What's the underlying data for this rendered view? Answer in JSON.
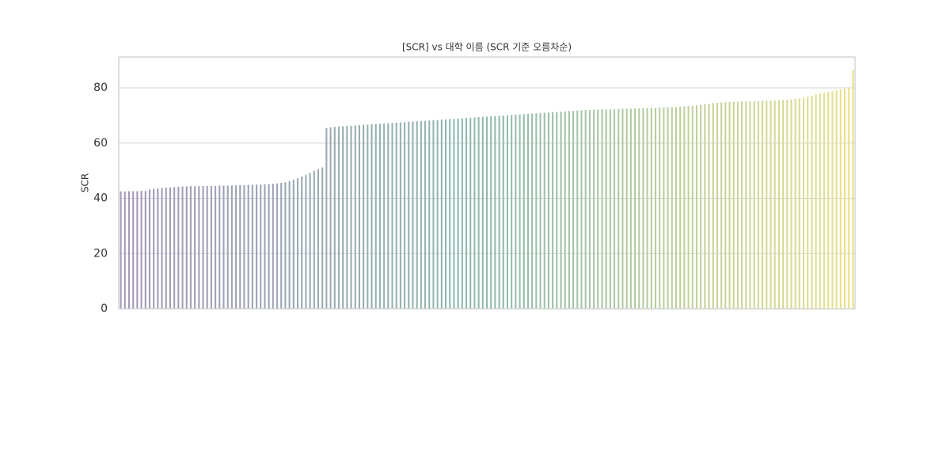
{
  "chart_data": {
    "type": "bar",
    "title": "[SCR] vs 대학 이름 (SCR 기준 오름차순)",
    "y_label": "SCR",
    "categories": [
      null,
      null,
      null,
      null,
      null,
      null,
      null,
      null,
      null,
      null,
      null,
      null,
      null,
      null,
      null,
      null,
      null,
      null,
      null,
      null,
      null,
      null,
      null,
      null,
      null,
      null,
      null,
      null,
      null,
      null,
      null,
      null,
      null,
      null,
      null,
      null,
      null,
      null,
      null,
      null,
      null,
      null,
      null,
      null,
      null,
      null,
      null,
      null,
      null,
      null,
      null,
      null,
      null,
      null,
      null,
      null,
      null,
      null,
      null,
      null,
      null,
      null,
      null,
      null,
      null,
      null,
      null,
      null,
      null,
      null,
      null,
      null,
      null,
      null,
      null,
      null,
      null,
      null,
      null,
      null,
      null,
      null,
      null,
      null,
      null,
      null,
      null,
      null,
      null,
      null,
      null,
      null,
      null,
      null,
      null,
      null,
      null,
      null,
      null,
      null,
      null,
      null,
      null,
      null,
      null,
      null,
      null,
      null,
      null,
      null,
      null,
      null,
      null,
      null,
      null,
      null,
      null,
      null,
      null,
      null,
      null,
      null,
      null,
      null,
      null,
      null,
      null,
      null,
      null,
      null,
      null,
      null,
      null,
      null,
      null,
      null,
      null,
      null,
      null,
      null,
      null,
      null,
      null,
      null,
      null,
      null,
      null,
      null,
      null,
      null,
      null,
      null,
      null,
      null,
      null,
      null,
      null,
      null,
      null,
      null,
      null,
      null,
      null,
      null,
      null,
      null,
      null,
      null,
      null,
      null,
      null,
      null,
      null,
      null,
      null,
      null,
      null,
      null,
      null
    ],
    "values": [
      42.5,
      42.5,
      42.6,
      42.6,
      42.6,
      42.7,
      42.7,
      43.2,
      43.4,
      43.6,
      43.8,
      43.9,
      44.0,
      44.1,
      44.2,
      44.3,
      44.3,
      44.4,
      44.4,
      44.4,
      44.5,
      44.5,
      44.5,
      44.5,
      44.6,
      44.6,
      44.6,
      44.7,
      44.7,
      44.8,
      44.8,
      44.9,
      44.9,
      45.0,
      45.0,
      45.1,
      45.2,
      45.3,
      45.4,
      45.6,
      45.8,
      46.2,
      46.8,
      47.3,
      47.9,
      48.5,
      49.2,
      50.0,
      50.6,
      51.2,
      65.5,
      65.7,
      65.9,
      66.0,
      66.1,
      66.2,
      66.3,
      66.4,
      66.5,
      66.6,
      66.7,
      66.8,
      66.9,
      67.0,
      67.1,
      67.2,
      67.3,
      67.4,
      67.5,
      67.6,
      67.7,
      67.8,
      67.9,
      68.0,
      68.1,
      68.2,
      68.3,
      68.4,
      68.5,
      68.6,
      68.7,
      68.8,
      68.9,
      69.0,
      69.1,
      69.2,
      69.3,
      69.4,
      69.5,
      69.6,
      69.7,
      69.8,
      69.9,
      70.0,
      70.1,
      70.2,
      70.3,
      70.4,
      70.5,
      70.6,
      70.7,
      70.8,
      70.9,
      71.0,
      71.1,
      71.2,
      71.3,
      71.4,
      71.5,
      71.6,
      71.7,
      71.8,
      71.9,
      72.0,
      72.0,
      72.1,
      72.1,
      72.2,
      72.2,
      72.3,
      72.3,
      72.4,
      72.4,
      72.5,
      72.5,
      72.6,
      72.6,
      72.7,
      72.7,
      72.8,
      72.8,
      72.9,
      72.9,
      73.0,
      73.0,
      73.1,
      73.2,
      73.3,
      73.4,
      73.5,
      73.7,
      73.9,
      74.1,
      74.3,
      74.5,
      74.6,
      74.7,
      74.8,
      74.9,
      75.0,
      75.0,
      75.1,
      75.1,
      75.2,
      75.2,
      75.3,
      75.3,
      75.4,
      75.4,
      75.5,
      75.5,
      75.6,
      75.7,
      75.8,
      76.0,
      76.2,
      76.5,
      76.8,
      77.2,
      77.6,
      78.0,
      78.3,
      78.6,
      78.9,
      79.2,
      79.5,
      79.8,
      80.0,
      86.5
    ],
    "palette": [
      "#a498b8",
      "#8fb9ae",
      "#e8e28c"
    ],
    "ylim": [
      0,
      91.2
    ],
    "yticks": [
      0,
      20,
      40,
      60,
      80
    ],
    "grid": true
  }
}
